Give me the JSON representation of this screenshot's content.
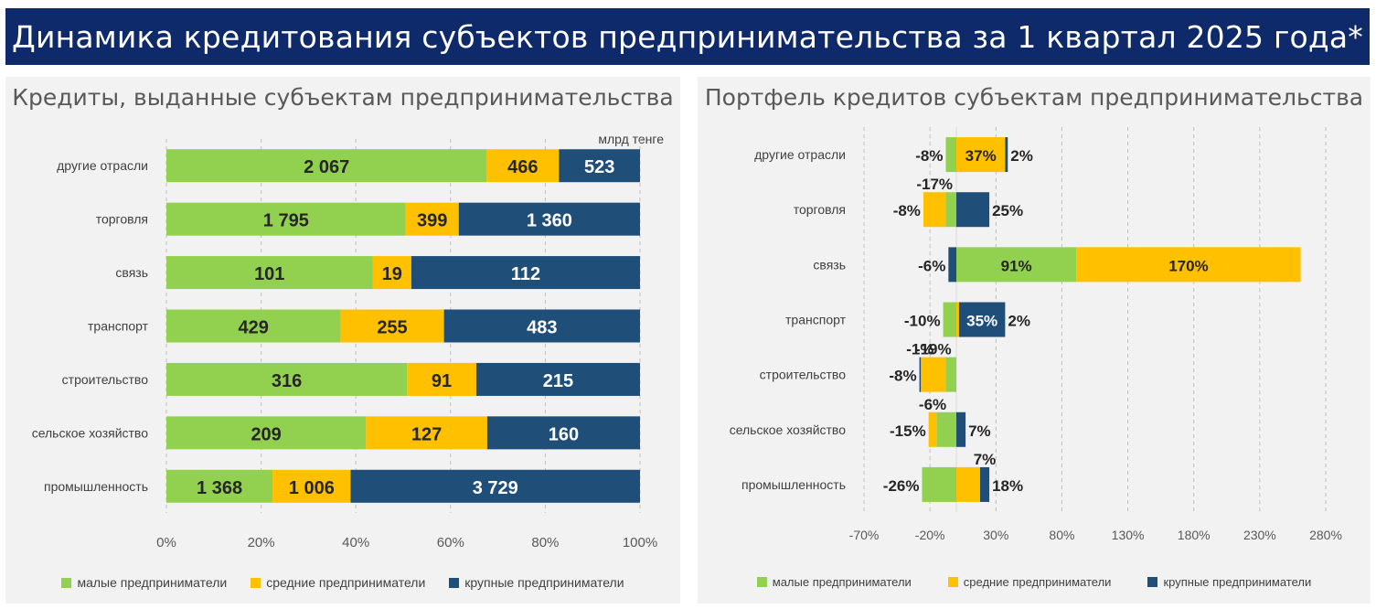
{
  "header": {
    "title": "Динамика кредитования субъектов предпринимательства за 1 квартал 2025 года*"
  },
  "colors": {
    "small": "#92d050",
    "medium": "#ffc000",
    "large": "#1f4e79",
    "banner": "#0e2a6b"
  },
  "legend": {
    "small": "малые предприниматели",
    "medium": "средние предприниматели",
    "large": "крупные предприниматели"
  },
  "chart_data": [
    {
      "type": "bar",
      "title": "Кредиты, выданные субъектам предпринимательства",
      "unit": "млрд тенге",
      "orientation": "horizontal",
      "stacking": "percent",
      "categories": [
        "другие отрасли",
        "торговля",
        "связь",
        "транспорт",
        "строительство",
        "сельское хозяйство",
        "промышленность"
      ],
      "series": [
        {
          "name": "малые предприниматели",
          "values": [
            2067,
            1795,
            101,
            429,
            316,
            209,
            1368
          ],
          "labels": [
            "2 067",
            "1 795",
            "101",
            "429",
            "316",
            "209",
            "1 368"
          ]
        },
        {
          "name": "средние предприниматели",
          "values": [
            466,
            399,
            19,
            255,
            91,
            127,
            1006
          ],
          "labels": [
            "466",
            "399",
            "19",
            "255",
            "91",
            "127",
            "1 006"
          ]
        },
        {
          "name": "крупные предприниматели",
          "values": [
            523,
            1360,
            112,
            483,
            215,
            160,
            3729
          ],
          "labels": [
            "523",
            "1 360",
            "112",
            "483",
            "215",
            "160",
            "3 729"
          ]
        }
      ],
      "x_ticks": [
        "0%",
        "20%",
        "40%",
        "60%",
        "80%",
        "100%"
      ],
      "xlim": [
        0,
        100
      ],
      "grid": true,
      "legend_position": "bottom"
    },
    {
      "type": "bar",
      "title": "Портфель кредитов субъектам предпринимательства",
      "orientation": "horizontal",
      "stacking": "stacked",
      "categories": [
        "другие отрасли",
        "торговля",
        "связь",
        "транспорт",
        "строительство",
        "сельское хозяйство",
        "промышленность"
      ],
      "series": [
        {
          "name": "малые предприниматели",
          "values": [
            -8,
            -8,
            91,
            -10,
            -8,
            -15,
            -26
          ],
          "labels": [
            "-8%",
            "-8%",
            "91%",
            "-10%",
            "-8%",
            "-15%",
            "-26%"
          ]
        },
        {
          "name": "средние предприниматели",
          "values": [
            37,
            -17,
            170,
            2,
            -19,
            -6,
            18
          ],
          "labels": [
            "37%",
            "-17%",
            "170%",
            "2%",
            "-19%",
            "-6%",
            "18%"
          ]
        },
        {
          "name": "крупные предприниматели",
          "values": [
            2,
            25,
            -6,
            35,
            -1,
            7,
            7
          ],
          "labels": [
            "2%",
            "25%",
            "-6%",
            "35%",
            "-1%",
            "7%",
            "7%"
          ]
        }
      ],
      "x_ticks": [
        "-70%",
        "-20%",
        "30%",
        "80%",
        "130%",
        "180%",
        "230%",
        "280%"
      ],
      "xlim": [
        -70,
        280
      ],
      "grid": true,
      "legend_position": "bottom"
    }
  ]
}
